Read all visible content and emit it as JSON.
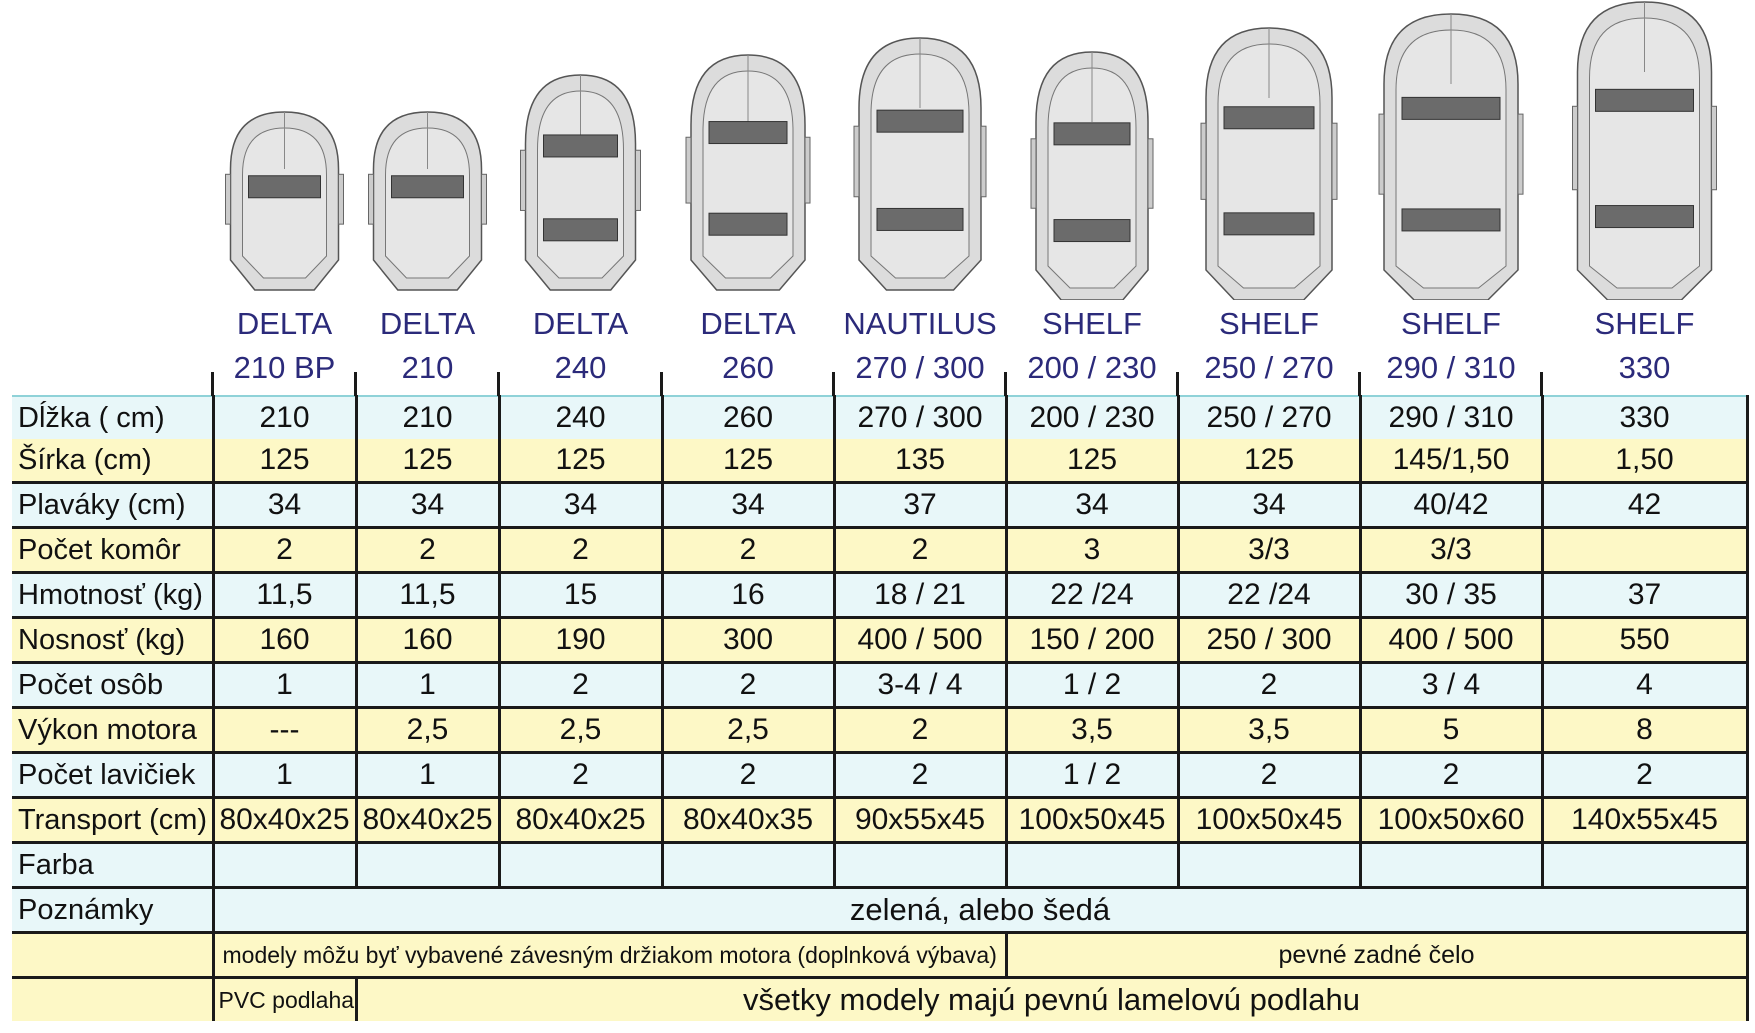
{
  "models": [
    {
      "line1": "DELTA",
      "line2": "210 BP"
    },
    {
      "line1": "DELTA",
      "line2": "210"
    },
    {
      "line1": "DELTA",
      "line2": "240"
    },
    {
      "line1": "DELTA",
      "line2": "260"
    },
    {
      "line1": "NAUTILUS",
      "line2": "270 / 300"
    },
    {
      "line1": "SHELF",
      "line2": "200 / 230"
    },
    {
      "line1": "SHELF",
      "line2": "250 / 270"
    },
    {
      "line1": "SHELF",
      "line2": "290 / 310"
    },
    {
      "line1": "SHELF",
      "line2": "330"
    }
  ],
  "rows": [
    {
      "label": "Dĺžka      ( cm)",
      "values": [
        "210",
        "210",
        "240",
        "260",
        "270 / 300",
        "200 / 230",
        "250 / 270",
        "290 / 310",
        "330"
      ]
    },
    {
      "label": "Šírka        (cm)",
      "values": [
        "125",
        "125",
        "125",
        "125",
        "135",
        "125",
        "125",
        "145/1,50",
        "1,50"
      ]
    },
    {
      "label": "Plaváky   (cm)",
      "values": [
        "34",
        "34",
        "34",
        "34",
        "37",
        "34",
        "34",
        "40/42",
        "42"
      ]
    },
    {
      "label": "Počet komôr",
      "values": [
        "2",
        "2",
        "2",
        "2",
        "2",
        "3",
        "3/3",
        "3/3",
        ""
      ]
    },
    {
      "label": "Hmotnosť (kg)",
      "values": [
        "11,5",
        "11,5",
        "15",
        "16",
        "18 / 21",
        "22 /24",
        "22 /24",
        "30 / 35",
        "37"
      ]
    },
    {
      "label": "Nosnosť (kg)",
      "values": [
        "160",
        "160",
        "190",
        "300",
        "400 / 500",
        "150 / 200",
        "250 / 300",
        "400 / 500",
        "550"
      ]
    },
    {
      "label": "Počet osôb",
      "values": [
        "1",
        "1",
        "2",
        "2",
        "3-4 / 4",
        "1 / 2",
        "2",
        "3 / 4",
        "4"
      ]
    },
    {
      "label": "Výkon motora",
      "values": [
        "---",
        "2,5",
        "2,5",
        "2,5",
        "2",
        "3,5",
        "3,5",
        "5",
        "8"
      ]
    },
    {
      "label": "Počet lavičiek",
      "values": [
        "1",
        "1",
        "2",
        "2",
        "2",
        "1 / 2",
        "2",
        "2",
        "2"
      ]
    },
    {
      "label": "Transport (cm)",
      "values": [
        "80x40x25",
        "80x40x25",
        "80x40x25",
        "80x40x35",
        "90x55x45",
        "100x50x45",
        "100x50x45",
        "100x50x60",
        "140x55x45"
      ]
    },
    {
      "label": "Farba",
      "values": [
        "",
        "",
        "",
        "",
        "",
        "",
        "",
        "",
        ""
      ]
    }
  ],
  "notes": {
    "label": "Poznámky",
    "colors": "zelená, alebo šedá",
    "motor_mount": "modely môžu byť vybavené závesným držiakom motora (doplnková výbava)",
    "rigid_transom": "pevné zadné čelo",
    "pvc_floor": "PVC podlaha",
    "slat_floor": "všetky modely majú pevnú lamelovú podlahu"
  },
  "colors": {
    "blue_row": "#e8f7f9",
    "yellow_row": "#fdf8c6",
    "model_text": "#2b2a7a",
    "boat_fill": "#dcdcdc",
    "seat_fill": "#6b6b6b"
  }
}
